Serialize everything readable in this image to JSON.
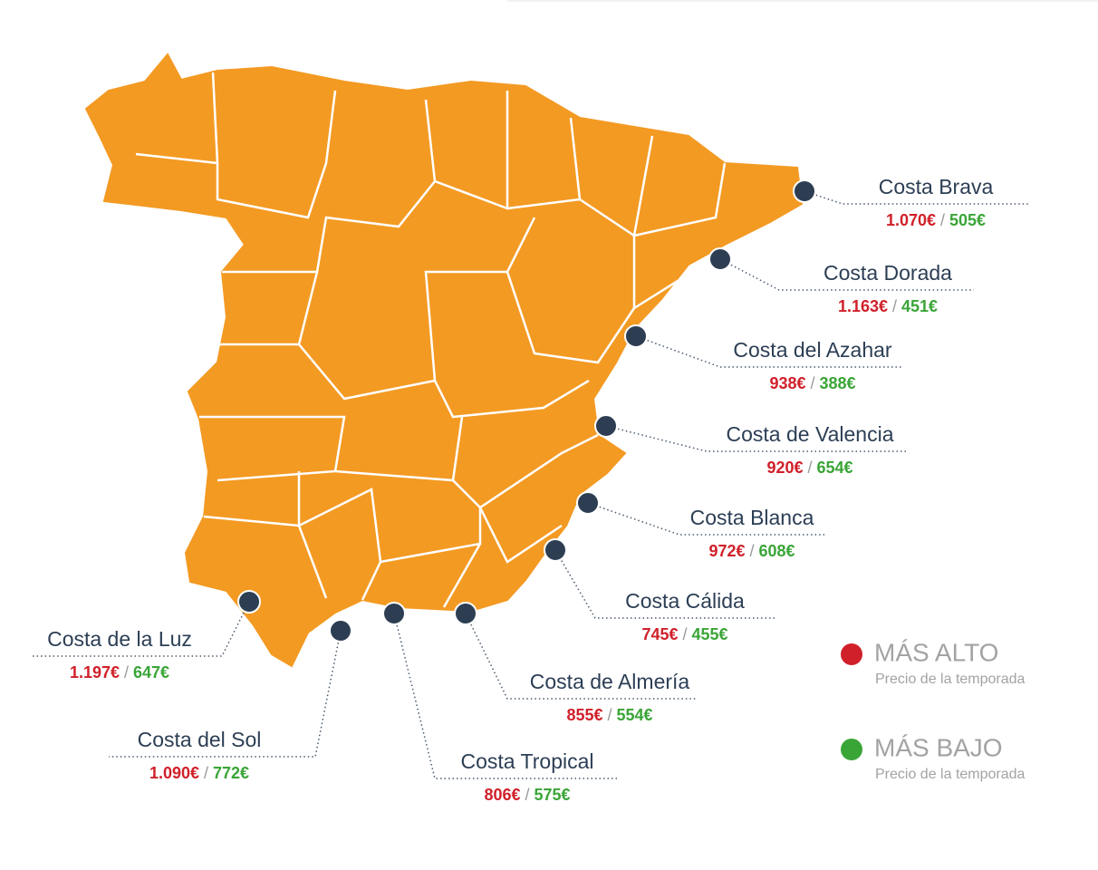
{
  "separator": "/",
  "costas": [
    {
      "name": "Costa Brava",
      "high": "1.070€",
      "low": "505€"
    },
    {
      "name": "Costa Dorada",
      "high": "1.163€",
      "low": "451€"
    },
    {
      "name": "Costa del Azahar",
      "high": "938€",
      "low": "388€"
    },
    {
      "name": "Costa de Valencia",
      "high": "920€",
      "low": "654€"
    },
    {
      "name": "Costa Blanca",
      "high": "972€",
      "low": "608€"
    },
    {
      "name": "Costa Cálida",
      "high": "745€",
      "low": "455€"
    },
    {
      "name": "Costa de Almería",
      "high": "855€",
      "low": "554€"
    },
    {
      "name": "Costa Tropical",
      "high": "806€",
      "low": "575€"
    },
    {
      "name": "Costa del Sol",
      "high": "1.090€",
      "low": "772€"
    },
    {
      "name": "Costa de la Luz",
      "high": "1.197€",
      "low": "647€"
    }
  ],
  "legend": {
    "high": {
      "title": "MÁS ALTO",
      "subtitle": "Precio de la temporada"
    },
    "low": {
      "title": "MÁS BAJO",
      "subtitle": "Precio de la temporada"
    }
  }
}
